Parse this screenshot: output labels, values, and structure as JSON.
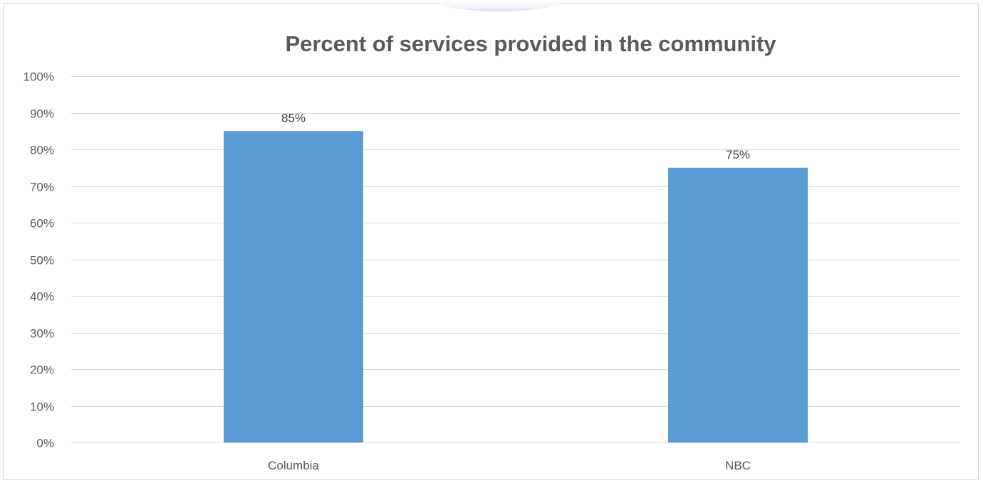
{
  "chart_data": {
    "type": "bar",
    "title": "Percent of services provided in the community",
    "xlabel": "",
    "ylabel": "",
    "categories": [
      "Columbia",
      "NBC"
    ],
    "values": [
      85,
      75
    ],
    "data_labels": [
      "85%",
      "75%"
    ],
    "ylim": [
      0,
      100
    ],
    "y_ticks": [
      0,
      10,
      20,
      30,
      40,
      50,
      60,
      70,
      80,
      90,
      100
    ],
    "y_tick_labels": [
      "0%",
      "10%",
      "20%",
      "30%",
      "40%",
      "50%",
      "60%",
      "70%",
      "80%",
      "90%",
      "100%"
    ],
    "grid": true,
    "legend": "none",
    "colors": {
      "bar": "#5b9bd5",
      "grid": "#d9d9d9",
      "text": "#595959"
    }
  }
}
